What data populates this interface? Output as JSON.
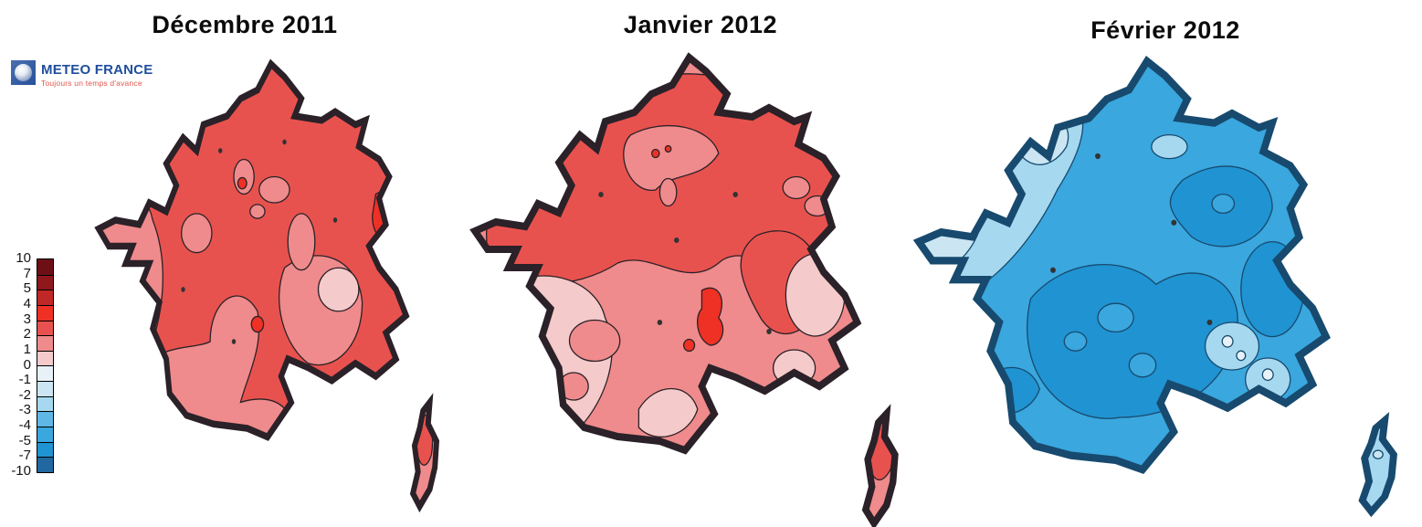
{
  "logo": {
    "name": "METEO FRANCE",
    "tagline": "Toujours un temps d'avance",
    "brand_blue": "#1f4e9e",
    "brand_red": "#e0584f"
  },
  "panels": [
    {
      "title": "Décembre 2011"
    },
    {
      "title": "Janvier 2012"
    },
    {
      "title": "Février 2012"
    }
  ],
  "legend": {
    "labels": [
      "10",
      "7",
      "5",
      "4",
      "3",
      "2",
      "1",
      "0",
      "-1",
      "-2",
      "-3",
      "-4",
      "-5",
      "-7",
      "-10"
    ],
    "colors": [
      "#6d1016",
      "#8e181c",
      "#c02827",
      "#ee3124",
      "#e8524e",
      "#ef8b8c",
      "#f5caca",
      "#e7f1f7",
      "#cbe5f3",
      "#a6d9f0",
      "#5fb7e5",
      "#3aa7de",
      "#2093d2",
      "#20689f"
    ]
  },
  "palette": {
    "contour_warm": "#2b2128",
    "contour_cold": "#174a6e",
    "speck": "#333333"
  },
  "chart_data": {
    "type": "heatmap",
    "subject": "Monthly temperature anomaly contour maps of France (Météo France)",
    "scale_ticks": [
      10,
      7,
      5,
      4,
      3,
      2,
      1,
      0,
      -1,
      -2,
      -3,
      -4,
      -5,
      -7,
      -10
    ],
    "scale_orientation": "vertical, warm red at top (+10) to cold blue at bottom (-10)",
    "maps": [
      {
        "title": "Décembre 2011",
        "tone": "warm (red)",
        "dominant_anomaly": "+2 to +3",
        "zones": [
          {
            "area": "most of northern and central France",
            "anomaly": "+2 to +3"
          },
          {
            "area": "Brittany, west coast, southern strip, southeast quarter, Corsica coast",
            "anomaly": "+1 to +2"
          },
          {
            "area": "small spots in Alsace, near Paris and center-south, inner Corsica",
            "anomaly": "+3 to +4"
          },
          {
            "area": "small patch near the Alps",
            "anomaly": "0 to +1"
          }
        ]
      },
      {
        "title": "Janvier 2012",
        "tone": "warm (red)",
        "dominant_anomaly": "+1 to +2",
        "zones": [
          {
            "area": "northern third and eastern band",
            "anomaly": "+2 to +3"
          },
          {
            "area": "central France, Brittany, Mediterranean rim, Corsica",
            "anomaly": "+1 to +2"
          },
          {
            "area": "southwest quarter, patches east of the Rhône and in the far southeast",
            "anomaly": "0 to +1"
          },
          {
            "area": "small spots north of Paris and center-south",
            "anomaly": "+3 to +4"
          }
        ]
      },
      {
        "title": "Février 2012",
        "tone": "cold (blue)",
        "dominant_anomaly": "-3 to -4",
        "zones": [
          {
            "area": "most of northern and eastern France",
            "anomaly": "-3 to -4"
          },
          {
            "area": "large center-south mass, northeast patch, southwest corner",
            "anomaly": "-4 to -5"
          },
          {
            "area": "band from Normandy to center, southeast patches, Corsica",
            "anomaly": "-2 to -3"
          },
          {
            "area": "western Brittany and Cotentin",
            "anomaly": "-1 to -2"
          }
        ]
      }
    ]
  }
}
